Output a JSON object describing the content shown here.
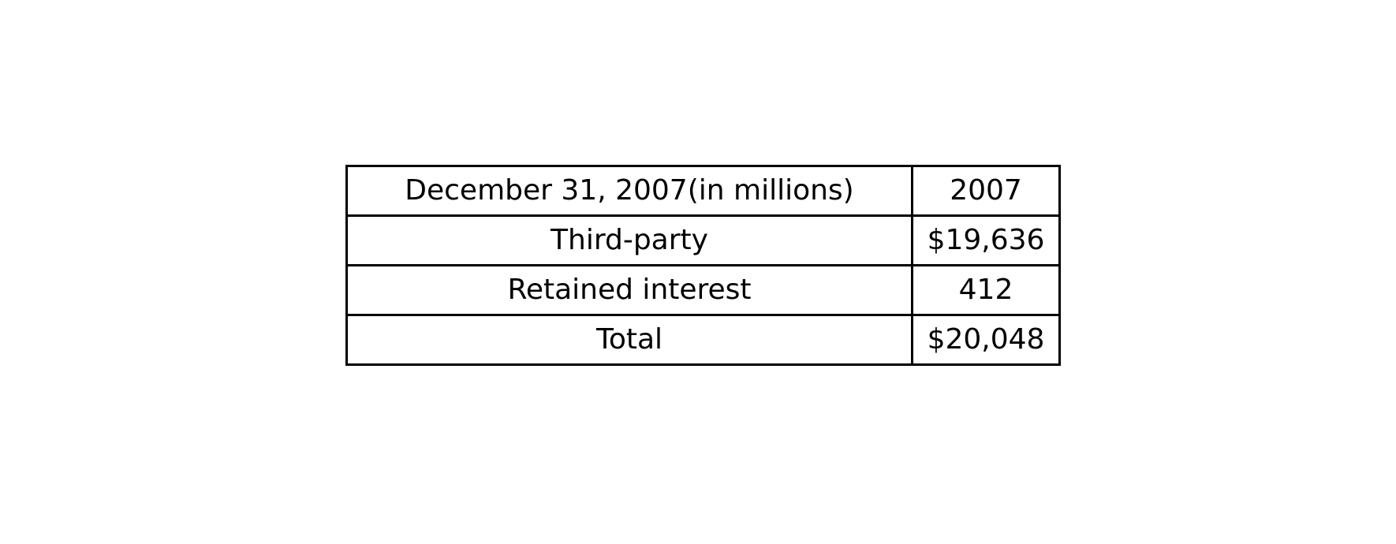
{
  "table": {
    "header": {
      "label": "December 31, 2007(in millions)",
      "value": "2007"
    },
    "rows": [
      {
        "label": "Third-party",
        "value": "$19,636"
      },
      {
        "label": "Retained interest",
        "value": "412"
      },
      {
        "label": "Total",
        "value": "$20,048"
      }
    ]
  }
}
